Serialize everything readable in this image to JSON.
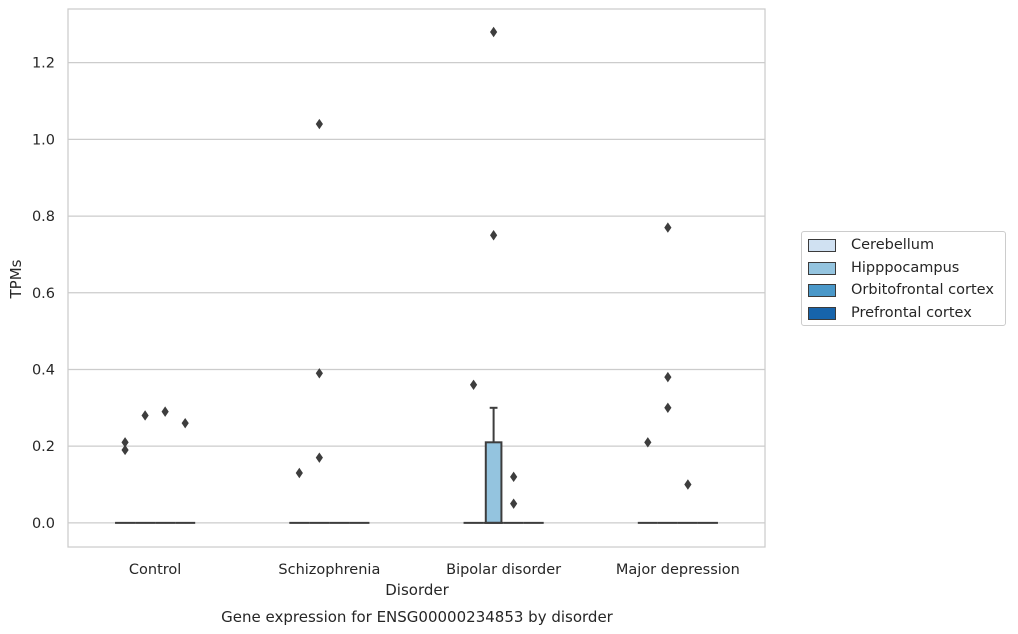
{
  "chart_data": {
    "type": "box",
    "title": "Gene expression for ENSG00000234853 by disorder",
    "xlabel": "Disorder",
    "ylabel": "TPMs",
    "categories": [
      "Control",
      "Schizophrenia",
      "Bipolar disorder",
      "Major depression"
    ],
    "ylim": [
      -0.063,
      1.34
    ],
    "yticks": [
      0.0,
      0.2,
      0.4,
      0.6,
      0.8,
      1.0,
      1.2
    ],
    "ytick_labels": [
      "0.0",
      "0.2",
      "0.4",
      "0.6",
      "0.8",
      "1.0",
      "1.2"
    ],
    "grid": true,
    "legend_position": "right",
    "series": [
      {
        "name": "Cerebellum",
        "color": "#d0e1f2"
      },
      {
        "name": "Hipppocampus",
        "color": "#94c4df"
      },
      {
        "name": "Orbitofrontal cortex",
        "color": "#4a98c9"
      },
      {
        "name": "Prefrontal cortex",
        "color": "#1764ab"
      }
    ],
    "boxes": [
      {
        "category": "Control",
        "series": "Cerebellum",
        "q1": 0,
        "median": 0,
        "q3": 0,
        "whisker_low": 0,
        "whisker_high": 0,
        "outliers": [
          0.19,
          0.21
        ]
      },
      {
        "category": "Control",
        "series": "Hipppocampus",
        "q1": 0,
        "median": 0,
        "q3": 0,
        "whisker_low": 0,
        "whisker_high": 0,
        "outliers": [
          0.28
        ]
      },
      {
        "category": "Control",
        "series": "Orbitofrontal cortex",
        "q1": 0,
        "median": 0,
        "q3": 0,
        "whisker_low": 0,
        "whisker_high": 0,
        "outliers": [
          0.29
        ]
      },
      {
        "category": "Control",
        "series": "Prefrontal cortex",
        "q1": 0,
        "median": 0,
        "q3": 0,
        "whisker_low": 0,
        "whisker_high": 0,
        "outliers": [
          0.26
        ]
      },
      {
        "category": "Schizophrenia",
        "series": "Cerebellum",
        "q1": 0,
        "median": 0,
        "q3": 0,
        "whisker_low": 0,
        "whisker_high": 0,
        "outliers": [
          0.13
        ]
      },
      {
        "category": "Schizophrenia",
        "series": "Hipppocampus",
        "q1": 0,
        "median": 0,
        "q3": 0,
        "whisker_low": 0,
        "whisker_high": 0,
        "outliers": [
          0.17,
          0.39,
          1.04
        ]
      },
      {
        "category": "Schizophrenia",
        "series": "Orbitofrontal cortex",
        "q1": 0,
        "median": 0,
        "q3": 0,
        "whisker_low": 0,
        "whisker_high": 0,
        "outliers": []
      },
      {
        "category": "Schizophrenia",
        "series": "Prefrontal cortex",
        "q1": 0,
        "median": 0,
        "q3": 0,
        "whisker_low": 0,
        "whisker_high": 0,
        "outliers": []
      },
      {
        "category": "Bipolar disorder",
        "series": "Cerebellum",
        "q1": 0,
        "median": 0,
        "q3": 0,
        "whisker_low": 0,
        "whisker_high": 0,
        "outliers": [
          0.36
        ]
      },
      {
        "category": "Bipolar disorder",
        "series": "Hipppocampus",
        "q1": 0,
        "median": 0,
        "q3": 0.21,
        "whisker_low": 0,
        "whisker_high": 0.3,
        "outliers": [
          0.75,
          1.28
        ]
      },
      {
        "category": "Bipolar disorder",
        "series": "Orbitofrontal cortex",
        "q1": 0,
        "median": 0,
        "q3": 0,
        "whisker_low": 0,
        "whisker_high": 0,
        "outliers": [
          0.05,
          0.12
        ]
      },
      {
        "category": "Bipolar disorder",
        "series": "Prefrontal cortex",
        "q1": 0,
        "median": 0,
        "q3": 0,
        "whisker_low": 0,
        "whisker_high": 0,
        "outliers": []
      },
      {
        "category": "Major depression",
        "series": "Cerebellum",
        "q1": 0,
        "median": 0,
        "q3": 0,
        "whisker_low": 0,
        "whisker_high": 0,
        "outliers": [
          0.21
        ]
      },
      {
        "category": "Major depression",
        "series": "Hipppocampus",
        "q1": 0,
        "median": 0,
        "q3": 0,
        "whisker_low": 0,
        "whisker_high": 0,
        "outliers": [
          0.3,
          0.38,
          0.77
        ]
      },
      {
        "category": "Major depression",
        "series": "Orbitofrontal cortex",
        "q1": 0,
        "median": 0,
        "q3": 0,
        "whisker_low": 0,
        "whisker_high": 0,
        "outliers": [
          0.1
        ]
      },
      {
        "category": "Major depression",
        "series": "Prefrontal cortex",
        "q1": 0,
        "median": 0,
        "q3": 0,
        "whisker_low": 0,
        "whisker_high": 0,
        "outliers": []
      }
    ]
  }
}
